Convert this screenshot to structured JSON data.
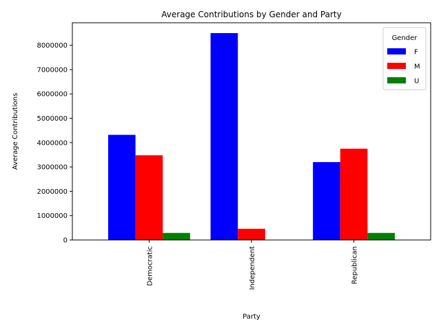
{
  "chart_data": {
    "type": "bar",
    "title": "Average Contributions by Gender and Party",
    "xlabel": "Party",
    "ylabel": "Average Contributions",
    "categories": [
      "Democratic",
      "Independent",
      "Republican"
    ],
    "series": [
      {
        "name": "F",
        "color": "#0000ff",
        "values": [
          4320000,
          8500000,
          3200000
        ]
      },
      {
        "name": "M",
        "color": "#ff0000",
        "values": [
          3480000,
          460000,
          3750000
        ]
      },
      {
        "name": "U",
        "color": "#008000",
        "values": [
          290000,
          0,
          290000
        ]
      }
    ],
    "ylim": [
      0,
      8925000
    ],
    "yticks": [
      0,
      1000000,
      2000000,
      3000000,
      4000000,
      5000000,
      6000000,
      7000000,
      8000000
    ],
    "ytick_labels": [
      "0",
      "1000000",
      "2000000",
      "3000000",
      "4000000",
      "5000000",
      "6000000",
      "7000000",
      "8000000"
    ],
    "legend": {
      "title": "Gender",
      "placement": "top-right"
    },
    "grid": false
  }
}
